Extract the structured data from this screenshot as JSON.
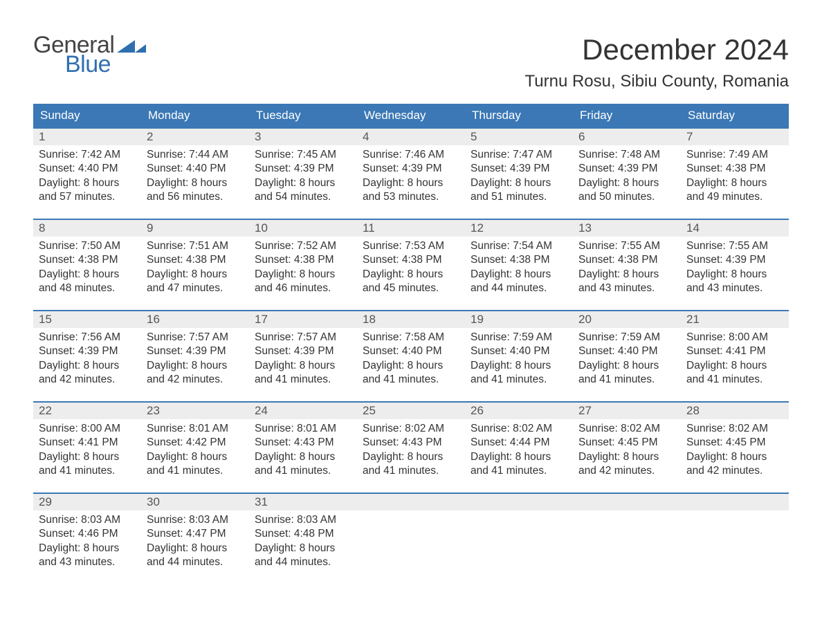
{
  "logo": {
    "word1": "General",
    "word2": "Blue",
    "color1": "#444444",
    "color2": "#2f6fb0",
    "tri_color": "#2f6fb0"
  },
  "header": {
    "month_title": "December 2024",
    "location": "Turnu Rosu, Sibiu County, Romania"
  },
  "colors": {
    "header_bg": "#3b78b5",
    "header_text": "#ffffff",
    "daynum_bg": "#ededed",
    "daynum_border": "#3b78b5",
    "text": "#333333",
    "muted": "#555555",
    "page_bg": "#ffffff"
  },
  "typography": {
    "title_fontsize": 42,
    "location_fontsize": 24,
    "weekday_fontsize": 17,
    "daynum_fontsize": 17,
    "body_fontsize": 15.5,
    "font_family": "Arial"
  },
  "calendar": {
    "weekdays": [
      "Sunday",
      "Monday",
      "Tuesday",
      "Wednesday",
      "Thursday",
      "Friday",
      "Saturday"
    ],
    "weeks": [
      [
        {
          "n": "1",
          "sunrise": "7:42 AM",
          "sunset": "4:40 PM",
          "dl1": "Daylight: 8 hours",
          "dl2": "and 57 minutes."
        },
        {
          "n": "2",
          "sunrise": "7:44 AM",
          "sunset": "4:40 PM",
          "dl1": "Daylight: 8 hours",
          "dl2": "and 56 minutes."
        },
        {
          "n": "3",
          "sunrise": "7:45 AM",
          "sunset": "4:39 PM",
          "dl1": "Daylight: 8 hours",
          "dl2": "and 54 minutes."
        },
        {
          "n": "4",
          "sunrise": "7:46 AM",
          "sunset": "4:39 PM",
          "dl1": "Daylight: 8 hours",
          "dl2": "and 53 minutes."
        },
        {
          "n": "5",
          "sunrise": "7:47 AM",
          "sunset": "4:39 PM",
          "dl1": "Daylight: 8 hours",
          "dl2": "and 51 minutes."
        },
        {
          "n": "6",
          "sunrise": "7:48 AM",
          "sunset": "4:39 PM",
          "dl1": "Daylight: 8 hours",
          "dl2": "and 50 minutes."
        },
        {
          "n": "7",
          "sunrise": "7:49 AM",
          "sunset": "4:38 PM",
          "dl1": "Daylight: 8 hours",
          "dl2": "and 49 minutes."
        }
      ],
      [
        {
          "n": "8",
          "sunrise": "7:50 AM",
          "sunset": "4:38 PM",
          "dl1": "Daylight: 8 hours",
          "dl2": "and 48 minutes."
        },
        {
          "n": "9",
          "sunrise": "7:51 AM",
          "sunset": "4:38 PM",
          "dl1": "Daylight: 8 hours",
          "dl2": "and 47 minutes."
        },
        {
          "n": "10",
          "sunrise": "7:52 AM",
          "sunset": "4:38 PM",
          "dl1": "Daylight: 8 hours",
          "dl2": "and 46 minutes."
        },
        {
          "n": "11",
          "sunrise": "7:53 AM",
          "sunset": "4:38 PM",
          "dl1": "Daylight: 8 hours",
          "dl2": "and 45 minutes."
        },
        {
          "n": "12",
          "sunrise": "7:54 AM",
          "sunset": "4:38 PM",
          "dl1": "Daylight: 8 hours",
          "dl2": "and 44 minutes."
        },
        {
          "n": "13",
          "sunrise": "7:55 AM",
          "sunset": "4:38 PM",
          "dl1": "Daylight: 8 hours",
          "dl2": "and 43 minutes."
        },
        {
          "n": "14",
          "sunrise": "7:55 AM",
          "sunset": "4:39 PM",
          "dl1": "Daylight: 8 hours",
          "dl2": "and 43 minutes."
        }
      ],
      [
        {
          "n": "15",
          "sunrise": "7:56 AM",
          "sunset": "4:39 PM",
          "dl1": "Daylight: 8 hours",
          "dl2": "and 42 minutes."
        },
        {
          "n": "16",
          "sunrise": "7:57 AM",
          "sunset": "4:39 PM",
          "dl1": "Daylight: 8 hours",
          "dl2": "and 42 minutes."
        },
        {
          "n": "17",
          "sunrise": "7:57 AM",
          "sunset": "4:39 PM",
          "dl1": "Daylight: 8 hours",
          "dl2": "and 41 minutes."
        },
        {
          "n": "18",
          "sunrise": "7:58 AM",
          "sunset": "4:40 PM",
          "dl1": "Daylight: 8 hours",
          "dl2": "and 41 minutes."
        },
        {
          "n": "19",
          "sunrise": "7:59 AM",
          "sunset": "4:40 PM",
          "dl1": "Daylight: 8 hours",
          "dl2": "and 41 minutes."
        },
        {
          "n": "20",
          "sunrise": "7:59 AM",
          "sunset": "4:40 PM",
          "dl1": "Daylight: 8 hours",
          "dl2": "and 41 minutes."
        },
        {
          "n": "21",
          "sunrise": "8:00 AM",
          "sunset": "4:41 PM",
          "dl1": "Daylight: 8 hours",
          "dl2": "and 41 minutes."
        }
      ],
      [
        {
          "n": "22",
          "sunrise": "8:00 AM",
          "sunset": "4:41 PM",
          "dl1": "Daylight: 8 hours",
          "dl2": "and 41 minutes."
        },
        {
          "n": "23",
          "sunrise": "8:01 AM",
          "sunset": "4:42 PM",
          "dl1": "Daylight: 8 hours",
          "dl2": "and 41 minutes."
        },
        {
          "n": "24",
          "sunrise": "8:01 AM",
          "sunset": "4:43 PM",
          "dl1": "Daylight: 8 hours",
          "dl2": "and 41 minutes."
        },
        {
          "n": "25",
          "sunrise": "8:02 AM",
          "sunset": "4:43 PM",
          "dl1": "Daylight: 8 hours",
          "dl2": "and 41 minutes."
        },
        {
          "n": "26",
          "sunrise": "8:02 AM",
          "sunset": "4:44 PM",
          "dl1": "Daylight: 8 hours",
          "dl2": "and 41 minutes."
        },
        {
          "n": "27",
          "sunrise": "8:02 AM",
          "sunset": "4:45 PM",
          "dl1": "Daylight: 8 hours",
          "dl2": "and 42 minutes."
        },
        {
          "n": "28",
          "sunrise": "8:02 AM",
          "sunset": "4:45 PM",
          "dl1": "Daylight: 8 hours",
          "dl2": "and 42 minutes."
        }
      ],
      [
        {
          "n": "29",
          "sunrise": "8:03 AM",
          "sunset": "4:46 PM",
          "dl1": "Daylight: 8 hours",
          "dl2": "and 43 minutes."
        },
        {
          "n": "30",
          "sunrise": "8:03 AM",
          "sunset": "4:47 PM",
          "dl1": "Daylight: 8 hours",
          "dl2": "and 44 minutes."
        },
        {
          "n": "31",
          "sunrise": "8:03 AM",
          "sunset": "4:48 PM",
          "dl1": "Daylight: 8 hours",
          "dl2": "and 44 minutes."
        },
        null,
        null,
        null,
        null
      ]
    ],
    "labels": {
      "sunrise_prefix": "Sunrise: ",
      "sunset_prefix": "Sunset: "
    }
  }
}
